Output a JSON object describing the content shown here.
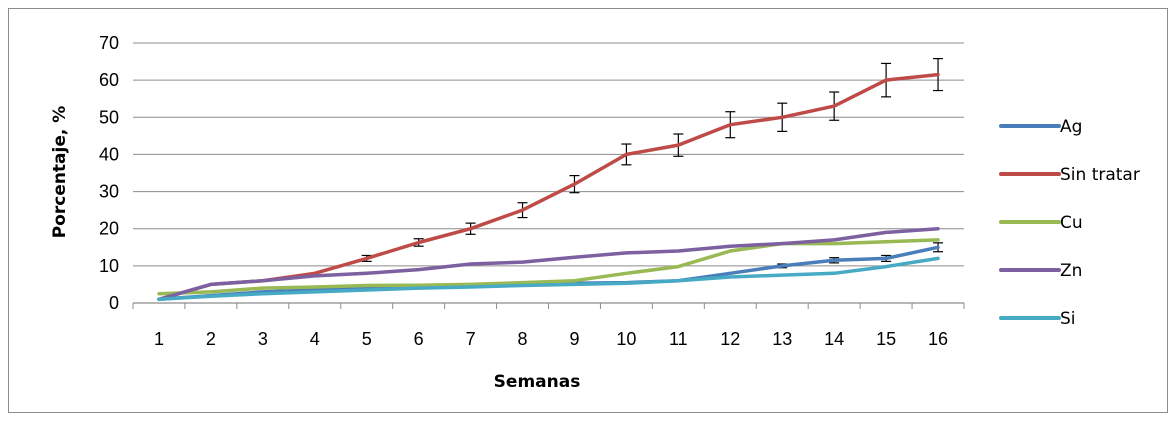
{
  "chart_data": {
    "type": "line",
    "xlabel": "Semanas",
    "ylabel": "Porcentaje, %",
    "ylim": [
      0,
      70
    ],
    "yticks": [
      0,
      10,
      20,
      30,
      40,
      50,
      60,
      70
    ],
    "grid": "horizontal",
    "legend": "right",
    "categories": [
      "1",
      "2",
      "3",
      "4",
      "5",
      "6",
      "7",
      "8",
      "9",
      "10",
      "11",
      "12",
      "13",
      "14",
      "15",
      "16"
    ],
    "series": [
      {
        "name": "Ag",
        "color": "#4a7ebb",
        "values": [
          1,
          2,
          3,
          3.5,
          4,
          4.3,
          4.6,
          5,
          5.3,
          5.5,
          6,
          8,
          10,
          11.5,
          12,
          15
        ],
        "errors": [
          0,
          0,
          0,
          0,
          0,
          0,
          0,
          0,
          0,
          0,
          0,
          0,
          0.5,
          0.7,
          0.8,
          1.2
        ]
      },
      {
        "name": "Sin tratar",
        "color": "#be4b48",
        "values": [
          1,
          5,
          6,
          8,
          12,
          16.3,
          20,
          25,
          32,
          40,
          42.5,
          48,
          50,
          53,
          60,
          61.5
        ],
        "errors": [
          0,
          0,
          0,
          0,
          0.8,
          1,
          1.5,
          2,
          2.3,
          2.8,
          3,
          3.5,
          3.8,
          3.8,
          4.5,
          4.3
        ]
      },
      {
        "name": "Cu",
        "color": "#98b954",
        "values": [
          2.5,
          3,
          4,
          4.3,
          4.7,
          4.8,
          5,
          5.5,
          6,
          8,
          9.8,
          14,
          16,
          16,
          16.5,
          17
        ],
        "errors": [
          0,
          0,
          0,
          0,
          0,
          0,
          0,
          0,
          0,
          0,
          0,
          0,
          0,
          0,
          0,
          0
        ]
      },
      {
        "name": "Zn",
        "color": "#7d60a0",
        "values": [
          1,
          5,
          6,
          7.3,
          8,
          9,
          10.5,
          11,
          12.3,
          13.5,
          14,
          15.3,
          16,
          17,
          19,
          20
        ],
        "errors": [
          0,
          0,
          0,
          0,
          0,
          0,
          0,
          0,
          0,
          0,
          0,
          0,
          0,
          0,
          0,
          0
        ]
      },
      {
        "name": "Si",
        "color": "#46aac5",
        "values": [
          1,
          1.8,
          2.5,
          3,
          3.5,
          4,
          4.3,
          4.7,
          5,
          5.3,
          6,
          7,
          7.5,
          8,
          9.8,
          12
        ],
        "errors": [
          0,
          0,
          0,
          0,
          0,
          0,
          0,
          0,
          0,
          0,
          0,
          0,
          0,
          0,
          0,
          0
        ]
      }
    ]
  }
}
